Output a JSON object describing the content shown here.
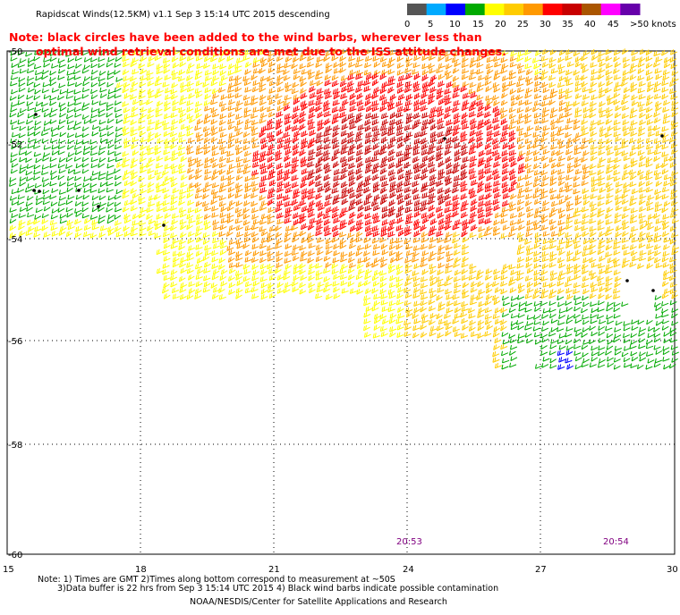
{
  "header": {
    "title": "Rapidscat Winds(12.5KM) v1.1 Sep  3 15:14 UTC 2015 descending"
  },
  "notice": {
    "line1": "Note: black circles have been added to the wind barbs, wherever less than",
    "line2": "optimal wind retrieval conditions are met due to the ISS attitude changes."
  },
  "colorbar": {
    "labels": [
      "0",
      "5",
      "10",
      "15",
      "20",
      "25",
      "30",
      "35",
      "40",
      "45",
      ">50 knots"
    ],
    "colors": [
      "#555555",
      "#00aaff",
      "#0000ff",
      "#00aa00",
      "#ffff00",
      "#ffcc00",
      "#ff9900",
      "#ff0000",
      "#c80000",
      "#aa5500",
      "#ff00ff",
      "#6600aa"
    ]
  },
  "axes": {
    "lat_labels": [
      "-50",
      "-52",
      "-54",
      "-56",
      "-58",
      "-60"
    ],
    "lon_labels": [
      "15",
      "18",
      "21",
      "24",
      "27",
      "30"
    ]
  },
  "times": [
    "20:53",
    "20:54"
  ],
  "footer": {
    "line1": "Note: 1) Times are GMT 2)Times along bottom correspond to measurement at ~50S",
    "line2": "3)Data buffer is 22 hrs from Sep  3 15:14 UTC 2015 4) Black wind barbs indicate possible contamination",
    "credit": "NOAA/NESDIS/Center for Satellite Applications and Research"
  }
}
